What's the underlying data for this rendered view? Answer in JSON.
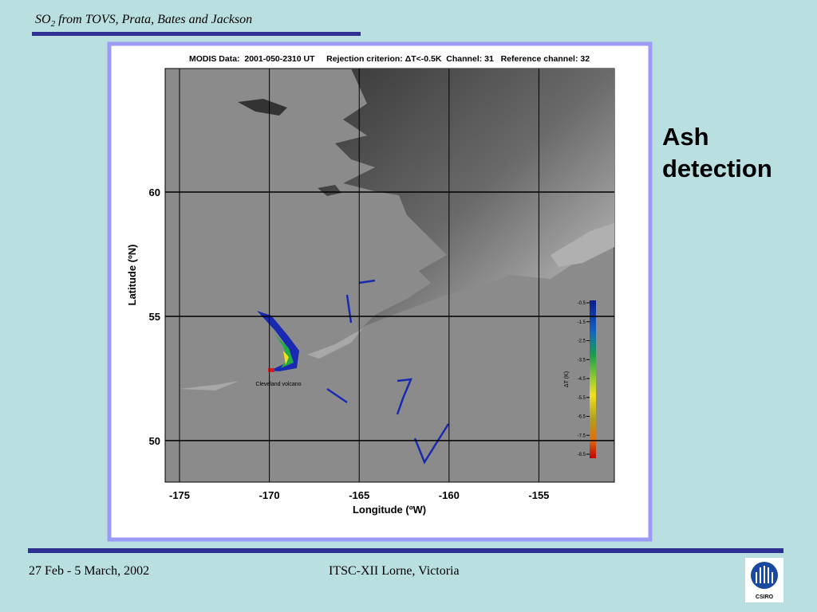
{
  "header": {
    "title": [
      "SO",
      "2",
      " from TOVS, Prata, Bates and Jackson"
    ]
  },
  "figure": {
    "title": "MODIS Data:  2001-050-2310 UT     Rejection criterion: ΔT<-0.5K  Channel: 31   Reference channel: 32",
    "x_label": "Longitude (ºW)",
    "y_label": "Latitude (ºN)",
    "x_ticks": [
      -175,
      -170,
      -165,
      -160,
      -155
    ],
    "y_ticks": [
      60,
      55,
      50
    ],
    "annotation": "Cleveland volcano",
    "colorbar": {
      "label": "ΔT (K)",
      "ticks": [
        -0.5,
        -1.5,
        -2.5,
        -3.5,
        -4.5,
        -5.5,
        -6.5,
        -7.5,
        -8.5
      ]
    }
  },
  "side_text": [
    "Ash",
    "detection"
  ],
  "footer": {
    "date": "27 Feb - 5 March, 2002",
    "event": "ITSC-XII Lorne, Victoria",
    "logo": "CSIRO"
  }
}
